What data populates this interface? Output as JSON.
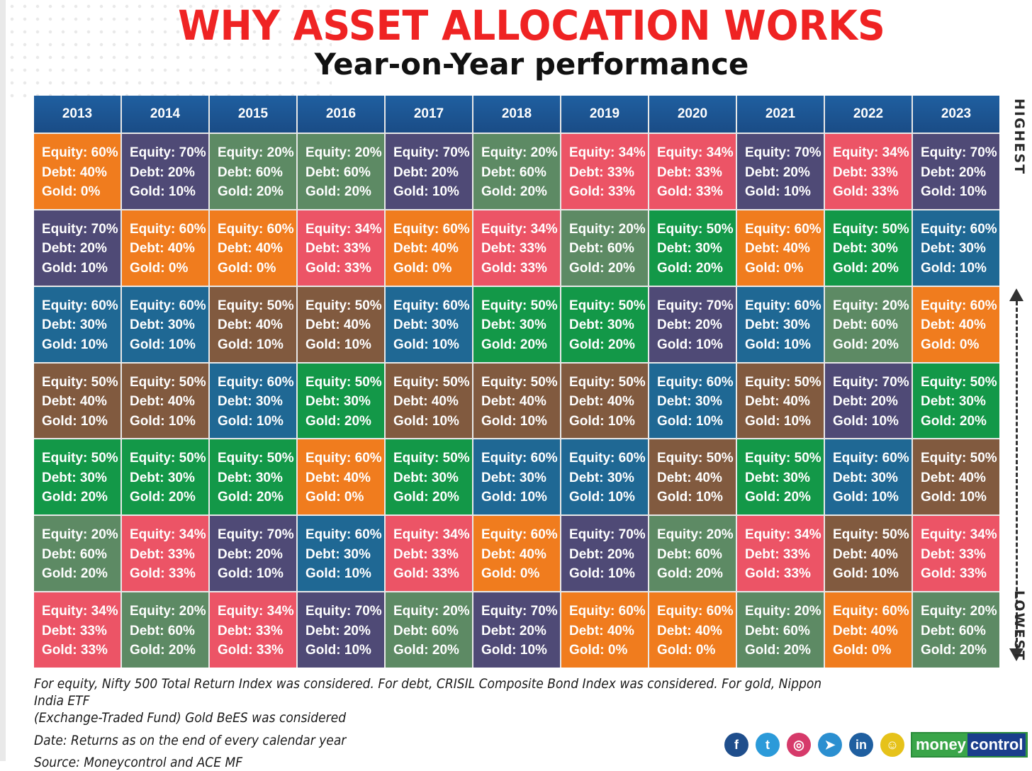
{
  "title": "WHY ASSET ALLOCATION WORKS",
  "subtitle": "Year-on-Year performance",
  "side_labels": {
    "top": "HIGHEST",
    "bottom": "LOWEST"
  },
  "colors": {
    "60-40-0": "#f07c1e",
    "70-20-10": "#4f4a76",
    "20-60-20": "#5d8a64",
    "34-33-33": "#ec5466",
    "60-30-10": "#1f6894",
    "50-40-10": "#815a3f",
    "50-30-20": "#139848",
    "header": "#1e5a99"
  },
  "chart_data": {
    "type": "table",
    "title": "WHY ASSET ALLOCATION WORKS",
    "subtitle": "Year-on-Year performance",
    "years": [
      "2013",
      "2014",
      "2015",
      "2016",
      "2017",
      "2018",
      "2019",
      "2020",
      "2021",
      "2022",
      "2023"
    ],
    "rows": [
      [
        {
          "key": "60-40-0",
          "lines": [
            "Equity: 60%",
            "Debt: 40%",
            "Gold: 0%"
          ]
        },
        {
          "key": "70-20-10",
          "lines": [
            "Equity: 70%",
            "Debt: 20%",
            "Gold: 10%"
          ]
        },
        {
          "key": "20-60-20",
          "lines": [
            "Equity: 20%",
            "Debt: 60%",
            "Gold: 20%"
          ]
        },
        {
          "key": "20-60-20",
          "lines": [
            "Equity: 20%",
            "Debt: 60%",
            "Gold: 20%"
          ]
        },
        {
          "key": "70-20-10",
          "lines": [
            "Equity: 70%",
            "Debt: 20%",
            "Gold: 10%"
          ]
        },
        {
          "key": "20-60-20",
          "lines": [
            "Equity: 20%",
            "Debt: 60%",
            "Gold: 20%"
          ]
        },
        {
          "key": "34-33-33",
          "lines": [
            "Equity: 34%",
            "Debt: 33%",
            "Gold: 33%"
          ]
        },
        {
          "key": "34-33-33",
          "lines": [
            "Equity: 34%",
            "Debt: 33%",
            "Gold: 33%"
          ]
        },
        {
          "key": "70-20-10",
          "lines": [
            "Equity: 70%",
            "Debt: 20%",
            "Gold: 10%"
          ]
        },
        {
          "key": "34-33-33",
          "lines": [
            "Equity: 34%",
            "Debt: 33%",
            "Gold: 33%"
          ]
        },
        {
          "key": "70-20-10",
          "lines": [
            "Equity: 70%",
            "Debt: 20%",
            "Gold: 10%"
          ]
        }
      ],
      [
        {
          "key": "70-20-10",
          "lines": [
            "Equity: 70%",
            "Debt: 20%",
            "Gold: 10%"
          ]
        },
        {
          "key": "60-40-0",
          "lines": [
            "Equity: 60%",
            "Debt: 40%",
            "Gold: 0%"
          ]
        },
        {
          "key": "60-40-0",
          "lines": [
            "Equity: 60%",
            "Debt: 40%",
            "Gold: 0%"
          ]
        },
        {
          "key": "34-33-33",
          "lines": [
            "Equity: 34%",
            "Debt: 33%",
            "Gold: 33%"
          ]
        },
        {
          "key": "60-40-0",
          "lines": [
            "Equity: 60%",
            "Debt: 40%",
            "Gold: 0%"
          ]
        },
        {
          "key": "34-33-33",
          "lines": [
            "Equity: 34%",
            "Debt: 33%",
            "Gold: 33%"
          ]
        },
        {
          "key": "20-60-20",
          "lines": [
            "Equity: 20%",
            "Debt: 60%",
            "Gold: 20%"
          ]
        },
        {
          "key": "50-30-20",
          "lines": [
            "Equity: 50%",
            "Debt: 30%",
            "Gold: 20%"
          ]
        },
        {
          "key": "60-40-0",
          "lines": [
            "Equity: 60%",
            "Debt: 40%",
            "Gold: 0%"
          ]
        },
        {
          "key": "50-30-20",
          "lines": [
            "Equity: 50%",
            "Debt: 30%",
            "Gold: 20%"
          ]
        },
        {
          "key": "60-30-10",
          "lines": [
            "Equity: 60%",
            "Debt: 30%",
            "Gold: 10%"
          ]
        }
      ],
      [
        {
          "key": "60-30-10",
          "lines": [
            "Equity: 60%",
            "Debt: 30%",
            "Gold: 10%"
          ]
        },
        {
          "key": "60-30-10",
          "lines": [
            "Equity: 60%",
            "Debt: 30%",
            "Gold: 10%"
          ]
        },
        {
          "key": "50-40-10",
          "lines": [
            "Equity: 50%",
            "Debt: 40%",
            "Gold: 10%"
          ]
        },
        {
          "key": "50-40-10",
          "lines": [
            "Equity: 50%",
            "Debt: 40%",
            "Gold: 10%"
          ]
        },
        {
          "key": "60-30-10",
          "lines": [
            "Equity: 60%",
            "Debt: 30%",
            "Gold: 10%"
          ]
        },
        {
          "key": "50-30-20",
          "lines": [
            "Equity: 50%",
            "Debt: 30%",
            "Gold: 20%"
          ]
        },
        {
          "key": "50-30-20",
          "lines": [
            "Equity: 50%",
            "Debt: 30%",
            "Gold: 20%"
          ]
        },
        {
          "key": "70-20-10",
          "lines": [
            "Equity: 70%",
            "Debt: 20%",
            "Gold: 10%"
          ]
        },
        {
          "key": "60-30-10",
          "lines": [
            "Equity: 60%",
            "Debt: 30%",
            "Gold: 10%"
          ]
        },
        {
          "key": "20-60-20",
          "lines": [
            "Equity: 20%",
            "Debt: 60%",
            "Gold: 20%"
          ]
        },
        {
          "key": "60-40-0",
          "lines": [
            "Equity: 60%",
            "Debt: 40%",
            "Gold: 0%"
          ]
        }
      ],
      [
        {
          "key": "50-40-10",
          "lines": [
            "Equity: 50%",
            "Debt: 40%",
            "Gold: 10%"
          ]
        },
        {
          "key": "50-40-10",
          "lines": [
            "Equity: 50%",
            "Debt: 40%",
            "Gold: 10%"
          ]
        },
        {
          "key": "60-30-10",
          "lines": [
            "Equity: 60%",
            "Debt: 30%",
            "Gold: 10%"
          ]
        },
        {
          "key": "50-30-20",
          "lines": [
            "Equity: 50%",
            "Debt: 30%",
            "Gold: 20%"
          ]
        },
        {
          "key": "50-40-10",
          "lines": [
            "Equity: 50%",
            "Debt: 40%",
            "Gold: 10%"
          ]
        },
        {
          "key": "50-40-10",
          "lines": [
            "Equity: 50%",
            "Debt: 40%",
            "Gold: 10%"
          ]
        },
        {
          "key": "50-40-10",
          "lines": [
            "Equity: 50%",
            "Debt: 40%",
            "Gold: 10%"
          ]
        },
        {
          "key": "60-30-10",
          "lines": [
            "Equity: 60%",
            "Debt: 30%",
            "Gold: 10%"
          ]
        },
        {
          "key": "50-40-10",
          "lines": [
            "Equity: 50%",
            "Debt: 40%",
            "Gold: 10%"
          ]
        },
        {
          "key": "70-20-10",
          "lines": [
            "Equity: 70%",
            "Debt: 20%",
            "Gold: 10%"
          ]
        },
        {
          "key": "50-30-20",
          "lines": [
            "Equity: 50%",
            "Debt: 30%",
            "Gold: 20%"
          ]
        }
      ],
      [
        {
          "key": "50-30-20",
          "lines": [
            "Equity: 50%",
            "Debt: 30%",
            "Gold: 20%"
          ]
        },
        {
          "key": "50-30-20",
          "lines": [
            "Equity: 50%",
            "Debt: 30%",
            "Gold: 20%"
          ]
        },
        {
          "key": "50-30-20",
          "lines": [
            "Equity: 50%",
            "Debt: 30%",
            "Gold: 20%"
          ]
        },
        {
          "key": "60-40-0",
          "lines": [
            "Equity: 60%",
            "Debt: 40%",
            "Gold: 0%"
          ]
        },
        {
          "key": "50-30-20",
          "lines": [
            "Equity: 50%",
            "Debt: 30%",
            "Gold: 20%"
          ]
        },
        {
          "key": "60-30-10",
          "lines": [
            "Equity: 60%",
            "Debt: 30%",
            "Gold: 10%"
          ]
        },
        {
          "key": "60-30-10",
          "lines": [
            "Equity: 60%",
            "Debt: 30%",
            "Gold: 10%"
          ]
        },
        {
          "key": "50-40-10",
          "lines": [
            "Equity: 50%",
            "Debt: 40%",
            "Gold: 10%"
          ]
        },
        {
          "key": "50-30-20",
          "lines": [
            "Equity: 50%",
            "Debt: 30%",
            "Gold: 20%"
          ]
        },
        {
          "key": "60-30-10",
          "lines": [
            "Equity: 60%",
            "Debt: 30%",
            "Gold: 10%"
          ]
        },
        {
          "key": "50-40-10",
          "lines": [
            "Equity: 50%",
            "Debt: 40%",
            "Gold: 10%"
          ]
        }
      ],
      [
        {
          "key": "20-60-20",
          "lines": [
            "Equity: 20%",
            "Debt: 60%",
            "Gold: 20%"
          ]
        },
        {
          "key": "34-33-33",
          "lines": [
            "Equity: 34%",
            "Debt: 33%",
            "Gold: 33%"
          ]
        },
        {
          "key": "70-20-10",
          "lines": [
            "Equity: 70%",
            "Debt: 20%",
            "Gold: 10%"
          ]
        },
        {
          "key": "60-30-10",
          "lines": [
            "Equity: 60%",
            "Debt: 30%",
            "Gold: 10%"
          ]
        },
        {
          "key": "34-33-33",
          "lines": [
            "Equity: 34%",
            "Debt: 33%",
            "Gold: 33%"
          ]
        },
        {
          "key": "60-40-0",
          "lines": [
            "Equity: 60%",
            "Debt: 40%",
            "Gold: 0%"
          ]
        },
        {
          "key": "70-20-10",
          "lines": [
            "Equity: 70%",
            "Debt: 20%",
            "Gold: 10%"
          ]
        },
        {
          "key": "20-60-20",
          "lines": [
            "Equity: 20%",
            "Debt: 60%",
            "Gold: 20%"
          ]
        },
        {
          "key": "34-33-33",
          "lines": [
            "Equity: 34%",
            "Debt: 33%",
            "Gold: 33%"
          ]
        },
        {
          "key": "50-40-10",
          "lines": [
            "Equity: 50%",
            "Debt: 40%",
            "Gold: 10%"
          ]
        },
        {
          "key": "34-33-33",
          "lines": [
            "Equity: 34%",
            "Debt: 33%",
            "Gold: 33%"
          ]
        }
      ],
      [
        {
          "key": "34-33-33",
          "lines": [
            "Equity: 34%",
            "Debt: 33%",
            "Gold: 33%"
          ]
        },
        {
          "key": "20-60-20",
          "lines": [
            "Equity: 20%",
            "Debt: 60%",
            "Gold: 20%"
          ]
        },
        {
          "key": "34-33-33",
          "lines": [
            "Equity: 34%",
            "Debt: 33%",
            "Gold: 33%"
          ]
        },
        {
          "key": "70-20-10",
          "lines": [
            "Equity: 70%",
            "Debt: 20%",
            "Gold: 10%"
          ]
        },
        {
          "key": "20-60-20",
          "lines": [
            "Equity: 20%",
            "Debt: 60%",
            "Gold: 20%"
          ]
        },
        {
          "key": "70-20-10",
          "lines": [
            "Equity: 70%",
            "Debt: 20%",
            "Gold: 10%"
          ]
        },
        {
          "key": "60-40-0",
          "lines": [
            "Equity: 60%",
            "Debt: 40%",
            "Gold: 0%"
          ]
        },
        {
          "key": "60-40-0",
          "lines": [
            "Equity: 60%",
            "Debt: 40%",
            "Gold: 0%"
          ]
        },
        {
          "key": "20-60-20",
          "lines": [
            "Equity: 20%",
            "Debt: 60%",
            "Gold: 20%"
          ]
        },
        {
          "key": "60-40-0",
          "lines": [
            "Equity: 60%",
            "Debt: 40%",
            "Gold: 0%"
          ]
        },
        {
          "key": "20-60-20",
          "lines": [
            "Equity: 20%",
            "Debt: 60%",
            "Gold: 20%"
          ]
        }
      ]
    ]
  },
  "notes": {
    "line1": "For equity, Nifty 500 Total Return Index was considered. For debt, CRISIL Composite Bond Index was considered. For gold, Nippon India ETF",
    "line2": "(Exchange-Traded Fund) Gold BeES was considered",
    "date": "Date: Returns as on the end of every calendar year",
    "source": "Source: Moneycontrol and ACE MF"
  },
  "social_icons": [
    {
      "name": "facebook-icon",
      "glyph": "f",
      "color": "#1f4e8c"
    },
    {
      "name": "twitter-icon",
      "glyph": "t",
      "color": "#2b9ad9"
    },
    {
      "name": "instagram-icon",
      "glyph": "◎",
      "color": "#d63a6a"
    },
    {
      "name": "telegram-icon",
      "glyph": "➤",
      "color": "#2b8fd0"
    },
    {
      "name": "linkedin-icon",
      "glyph": "in",
      "color": "#1f5fa0"
    },
    {
      "name": "snapchat-icon",
      "glyph": "☺",
      "color": "#e6c21a"
    }
  ],
  "logo": {
    "part1": "money",
    "part2": "control"
  }
}
